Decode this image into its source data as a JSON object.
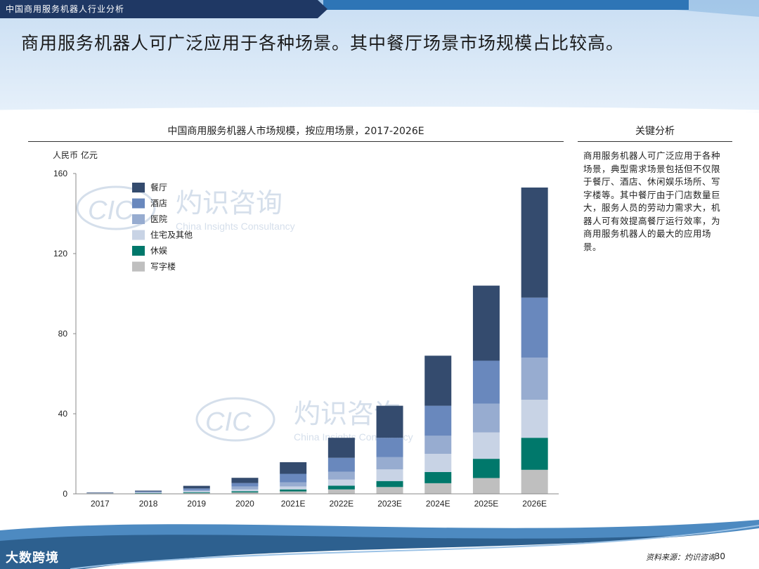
{
  "header": {
    "tab_title": "中国商用服务机器人行业分析",
    "headline": "商用服务机器人可广泛应用于各种场景。其中餐厅场景市场规模占比较高。"
  },
  "side_panel": {
    "title": "关键分析",
    "body": "商用服务机器人可广泛应用于各种场景，典型需求场景包括但不仅限于餐厅、酒店、休闲娱乐场所、写字楼等。其中餐厅由于门店数量巨大，服务人员的劳动力需求大，机器人可有效提高餐厅运行效率，为商用服务机器人的最大的应用场景。"
  },
  "footer": {
    "source": "资料来源：灼识咨询",
    "page_number": "30",
    "corner_mark": "大数跨境"
  },
  "watermark": {
    "cn": "灼识咨询",
    "en": "China Insights Consultancy",
    "mark": "CIC"
  },
  "colors": {
    "banner_dark": "#1f3864",
    "banner_light": "#5b9bd5",
    "sky": "#dbe9f7"
  },
  "chart_data": {
    "type": "bar",
    "stacked": true,
    "title": "中国商用服务机器人市场规模，按应用场景，2017-2026E",
    "ylabel": "人民币 亿元",
    "xlabel": "",
    "ylim": [
      0,
      160
    ],
    "yticks": [
      0,
      40,
      80,
      120,
      160
    ],
    "grid": false,
    "legend_position": "top-left",
    "categories": [
      "2017",
      "2018",
      "2019",
      "2020",
      "2021E",
      "2022E",
      "2023E",
      "2024E",
      "2025E",
      "2026E"
    ],
    "series": [
      {
        "name": "写字楼",
        "color": "#bfbfbf",
        "values": [
          0.1,
          0.2,
          0.4,
          0.7,
          1.2,
          2.2,
          3.4,
          5.3,
          7.9,
          12.0
        ]
      },
      {
        "name": "休娱",
        "color": "#00786b",
        "values": [
          0.1,
          0.2,
          0.4,
          0.6,
          1.0,
          1.9,
          3.0,
          5.6,
          9.6,
          16.0
        ]
      },
      {
        "name": "住宅及其他",
        "color": "#c8d3e5",
        "values": [
          0.1,
          0.2,
          0.5,
          0.9,
          1.5,
          3.0,
          5.8,
          9.1,
          13.2,
          19.0
        ]
      },
      {
        "name": "医院",
        "color": "#97acd0",
        "values": [
          0.1,
          0.3,
          0.6,
          1.5,
          2.0,
          3.9,
          6.1,
          9.0,
          14.3,
          21.0
        ]
      },
      {
        "name": "酒店",
        "color": "#6988bd",
        "values": [
          0.1,
          0.3,
          0.8,
          1.7,
          4.3,
          7.0,
          9.7,
          15.0,
          21.5,
          30.0
        ]
      },
      {
        "name": "餐厅",
        "color": "#344b6e",
        "values": [
          0.2,
          0.4,
          1.3,
          2.6,
          5.8,
          10.0,
          16.0,
          25.0,
          37.5,
          55.0
        ]
      }
    ]
  }
}
